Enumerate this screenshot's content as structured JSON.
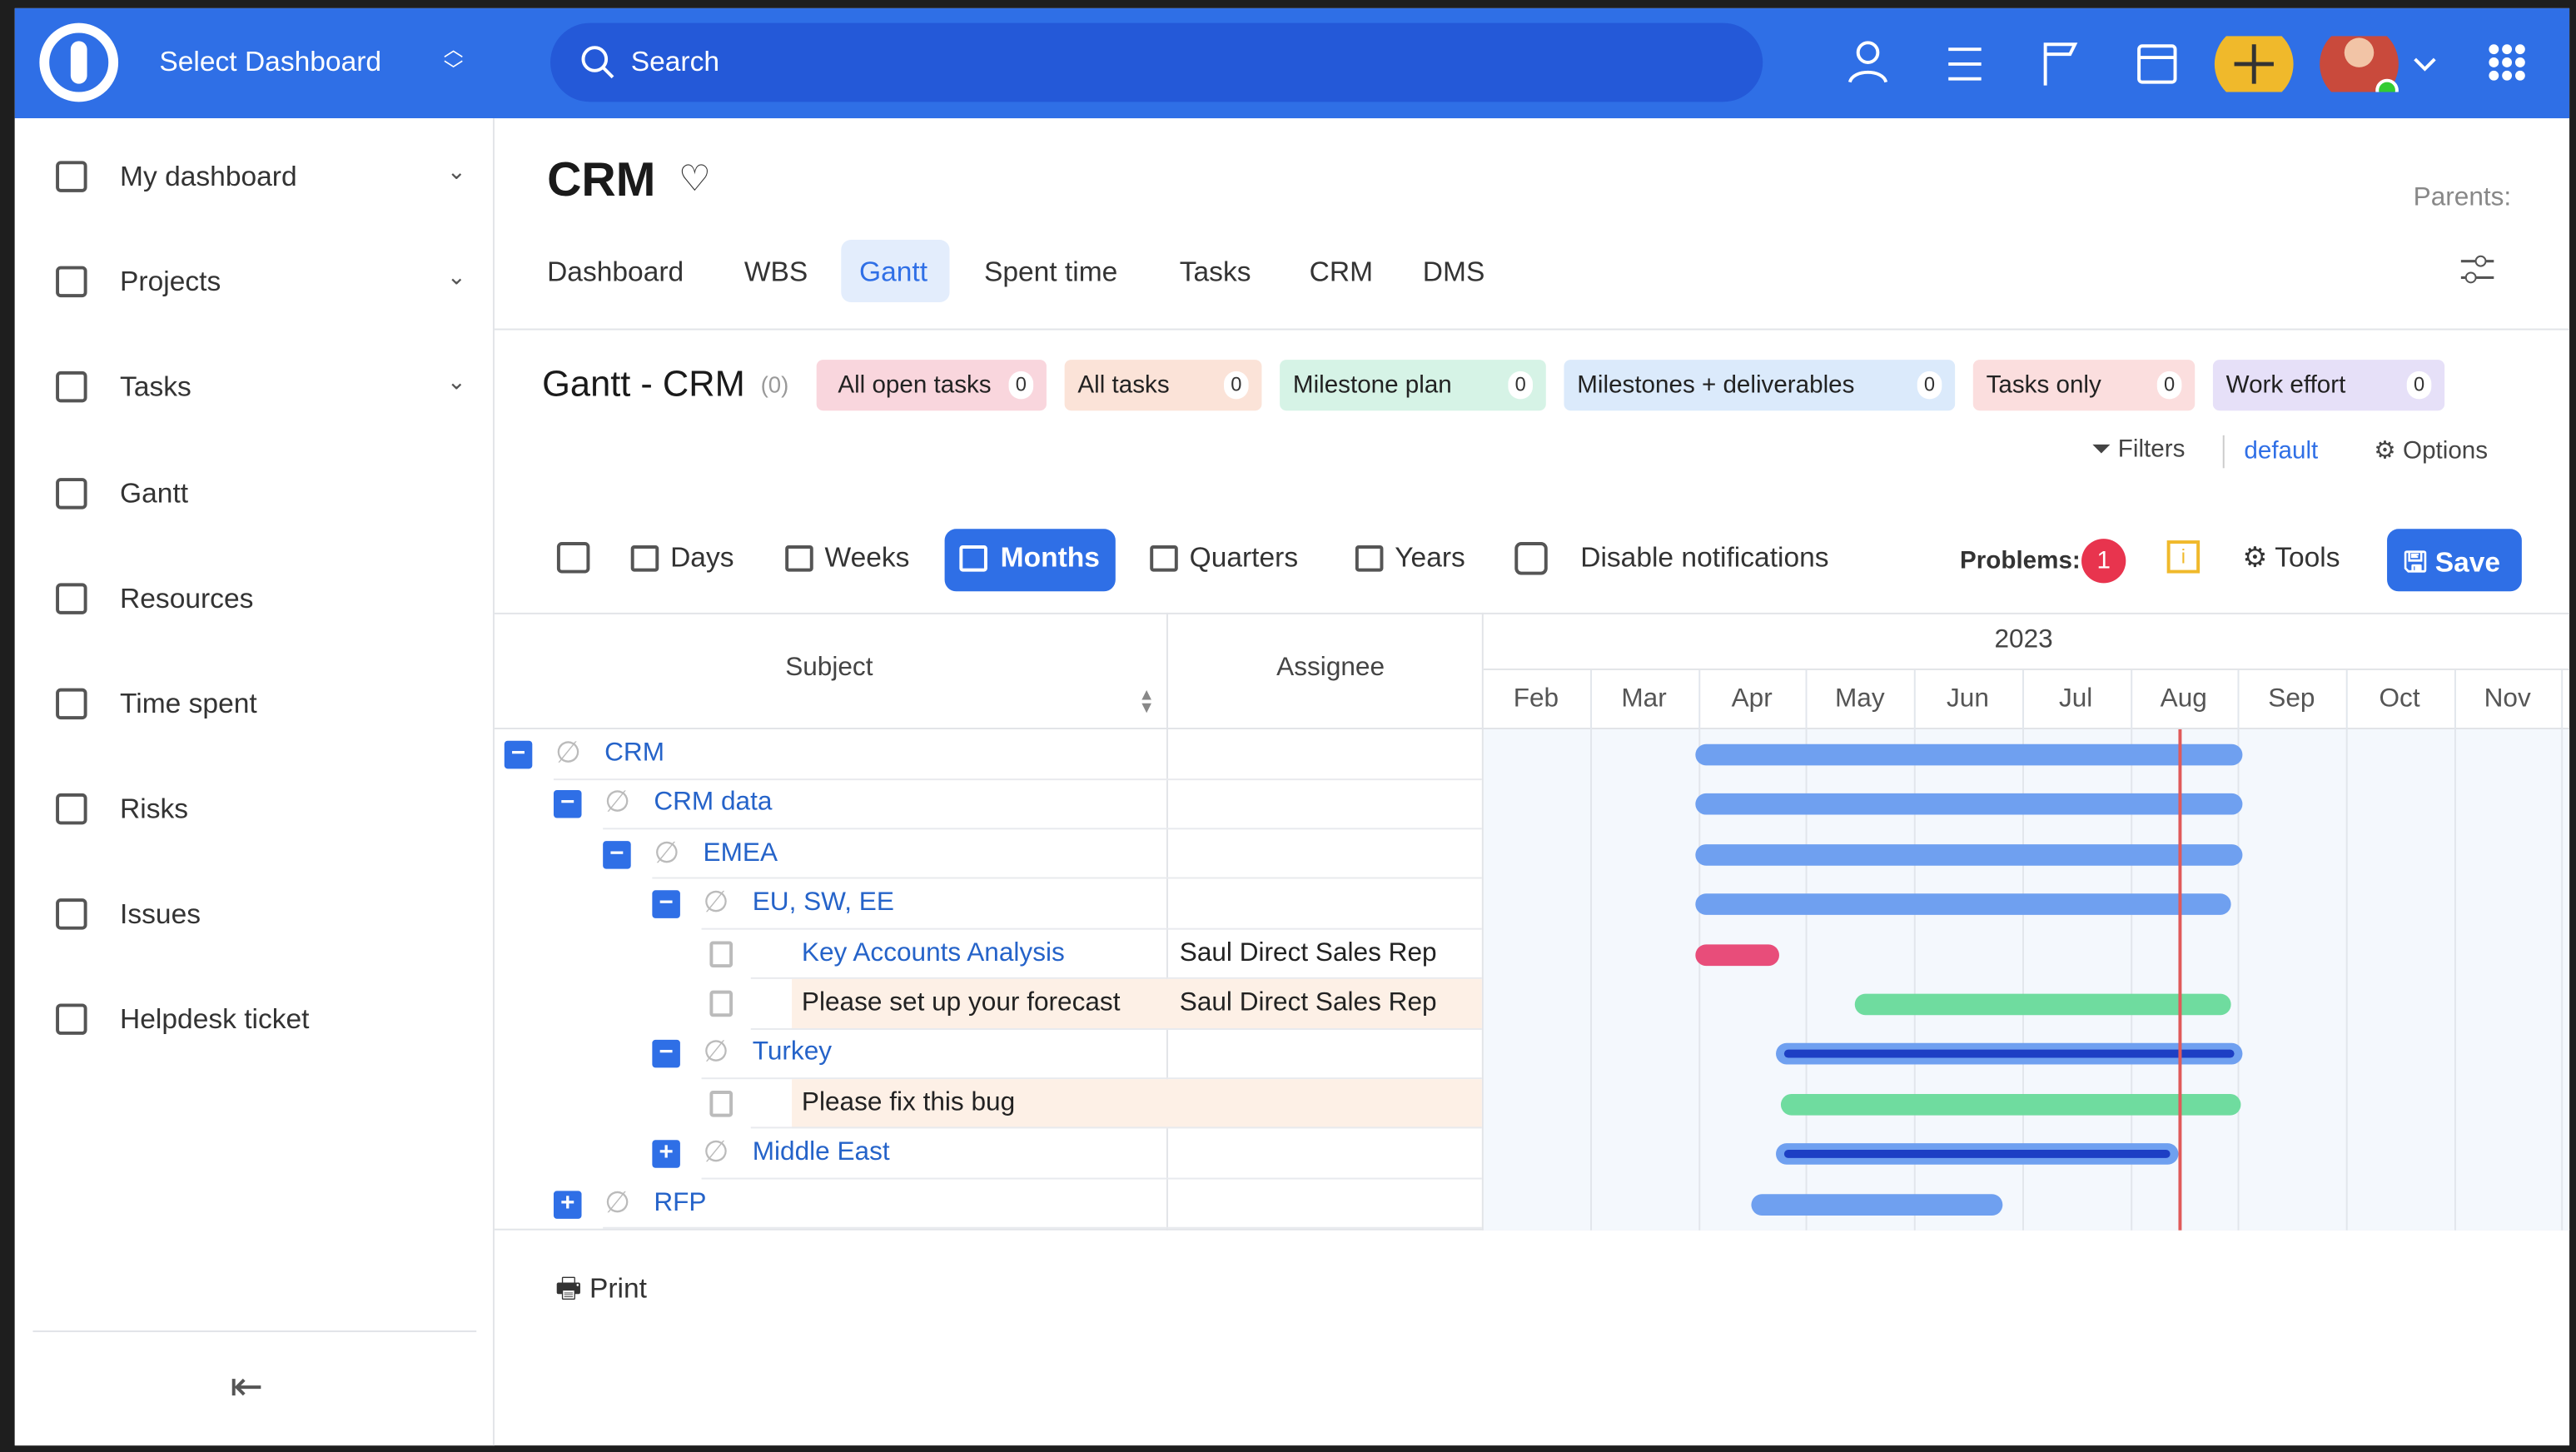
{
  "topbar": {
    "dashboard_select": "Select Dashboard",
    "search": "Search"
  },
  "sidebar": {
    "items": [
      "My dashboard",
      "Projects",
      "Tasks",
      "Gantt",
      "Resources",
      "Time spent",
      "Risks",
      "Issues",
      "Helpdesk ticket"
    ]
  },
  "page": {
    "title": "CRM",
    "parents": "Parents:",
    "tabs": [
      "Dashboard",
      "WBS",
      "Gantt",
      "Spent time",
      "Tasks",
      "CRM",
      "DMS"
    ]
  },
  "gantt": {
    "title": "Gantt - CRM",
    "count": "(0)",
    "queries": [
      {
        "label": "All open tasks",
        "count": 0
      },
      {
        "label": "All tasks",
        "count": 0
      },
      {
        "label": "Milestone plan",
        "count": 0
      },
      {
        "label": "Milestones + deliverables",
        "count": 0
      },
      {
        "label": "Tasks only",
        "count": 0
      },
      {
        "label": "Work effort",
        "count": 0
      }
    ],
    "filters": "Filters",
    "default": "default",
    "options": "Options",
    "zoom": [
      "Days",
      "Weeks",
      "Months",
      "Quarters",
      "Years"
    ],
    "disable_notifications": "Disable notifications",
    "problems_label": "Problems:",
    "problems": 1,
    "tools": "Tools",
    "save": "Save",
    "columns": [
      "Subject",
      "Assignee"
    ],
    "year": "2023",
    "months": [
      "Feb",
      "Mar",
      "Apr",
      "May",
      "Jun",
      "Jul",
      "Aug",
      "Sep",
      "Oct",
      "Nov"
    ],
    "rows": [
      {
        "subject": "CRM"
      },
      {
        "subject": "CRM data"
      },
      {
        "subject": "EMEA"
      },
      {
        "subject": "EU, SW, EE"
      },
      {
        "subject": "Key Accounts Analysis",
        "assignee": "Saul Direct Sales Rep"
      },
      {
        "subject": "Please set up your forecast",
        "assignee": "Saul Direct Sales Rep"
      },
      {
        "subject": "Turkey"
      },
      {
        "subject": "Please fix this bug"
      },
      {
        "subject": "Middle East"
      },
      {
        "subject": "RFP"
      }
    ],
    "print": "Print"
  }
}
